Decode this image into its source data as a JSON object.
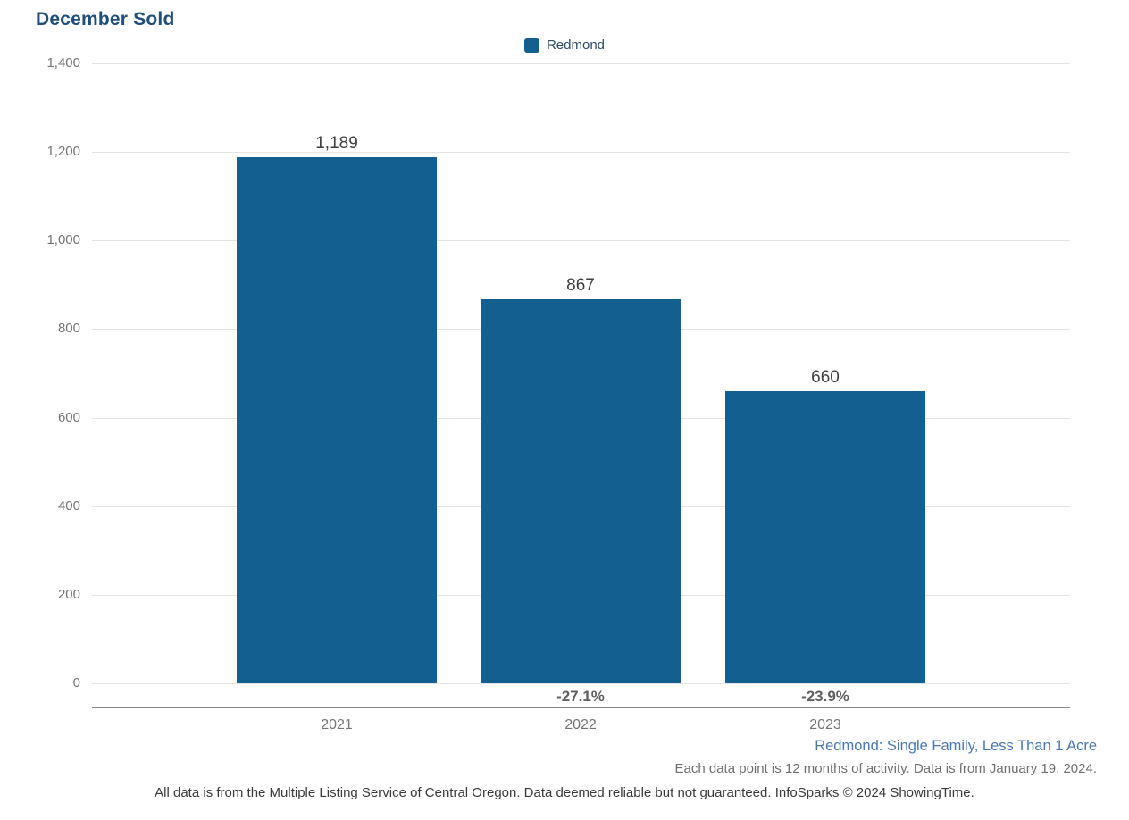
{
  "title": "December Sold",
  "legend": {
    "label": "Redmond"
  },
  "colors": {
    "bar": "#135F90",
    "title_text": "#1E4E79",
    "legend_text": "#2B4C68",
    "grid": "#E4E4E4",
    "axis_line": "#8A8A8A",
    "tick_text": "#757575",
    "value_label_text": "#3F3F3F",
    "pct_text": "#606060",
    "filter_note_text": "#4A78B0",
    "data_note_text": "#6F6F6F",
    "disclaimer_text": "#3A3A3A"
  },
  "chart_data": {
    "type": "bar",
    "title": "December Sold",
    "categories": [
      "2021",
      "2022",
      "2023"
    ],
    "series": [
      {
        "name": "Redmond",
        "values": [
          1189,
          867,
          660
        ]
      }
    ],
    "value_labels": [
      "1,189",
      "867",
      "660"
    ],
    "pct_change_labels": [
      "",
      "-27.1%",
      "-23.9%"
    ],
    "xlabel": "",
    "ylabel": "",
    "ylim": [
      0,
      1400
    ],
    "ytick_step": 200,
    "ytick_labels": [
      "0",
      "200",
      "400",
      "600",
      "800",
      "1,000",
      "1,200",
      "1,400"
    ],
    "grid": true,
    "legend_position": "top"
  },
  "footnotes": {
    "filter": "Redmond: Single Family, Less Than 1 Acre",
    "data_note": "Each data point is 12 months of activity. Data is from January 19, 2024.",
    "disclaimer": "All data is from the Multiple Listing Service of Central Oregon. Data deemed reliable but not guaranteed. InfoSparks © 2024 ShowingTime."
  }
}
